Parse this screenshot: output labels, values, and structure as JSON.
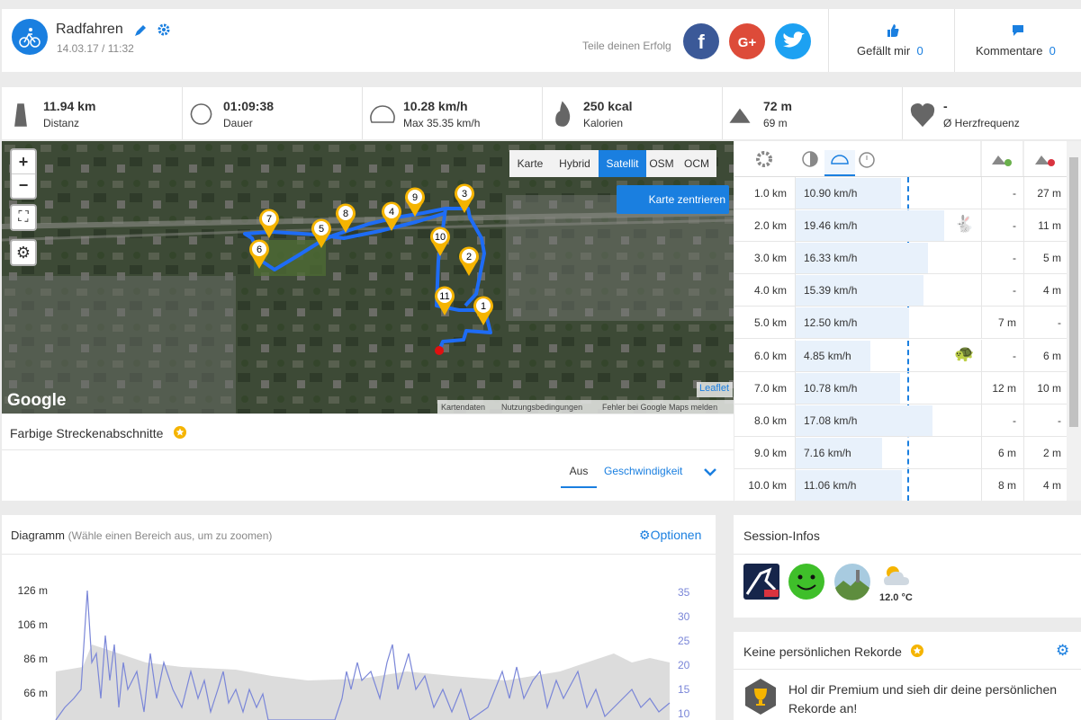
{
  "header": {
    "title": "Radfahren",
    "date": "14.03.17 / 11:32",
    "share": "Teile deinen Erfolg",
    "like_label": "Gefällt mir",
    "like_count": "0",
    "comment_label": "Kommentare",
    "comment_count": "0"
  },
  "stats": [
    {
      "value": "11.94 km",
      "label": "Distanz"
    },
    {
      "value": "01:09:38",
      "label": "Dauer"
    },
    {
      "value": "10.28 km/h",
      "label": "Max 35.35 km/h"
    },
    {
      "value": "250 kcal",
      "label": "Kalorien"
    },
    {
      "value": "72 m",
      "label": "69 m"
    },
    {
      "value": "-",
      "label": "Ø Herzfrequenz"
    }
  ],
  "map": {
    "types": [
      "Karte",
      "Hybrid",
      "Satellit",
      "OSM",
      "OCM"
    ],
    "active_type": "Satellit",
    "center_button": "Karte zentrieren",
    "zoom_in": "+",
    "zoom_out": "−",
    "markers": [
      "1",
      "2",
      "3",
      "4",
      "5",
      "6",
      "7",
      "8",
      "9",
      "10",
      "11"
    ],
    "brand": "Google",
    "attribution": "Leaflet",
    "footer": [
      "Kartendaten",
      "Nutzungsbedingungen",
      "Fehler bei Google Maps melden"
    ]
  },
  "segments": {
    "title": "Farbige Streckenabschnitte",
    "options": [
      "Aus",
      "Geschwindigkeit"
    ]
  },
  "splits": {
    "rows": [
      [
        "1.0 km",
        "10.90 km/h",
        "-",
        "27 m"
      ],
      [
        "2.0 km",
        "19.46 km/h",
        "-",
        "11 m"
      ],
      [
        "3.0 km",
        "16.33 km/h",
        "-",
        "5 m"
      ],
      [
        "4.0 km",
        "15.39 km/h",
        "-",
        "4 m"
      ],
      [
        "5.0 km",
        "12.50 km/h",
        "7 m",
        "-"
      ],
      [
        "6.0 km",
        "4.85 km/h",
        "-",
        "6 m"
      ],
      [
        "7.0 km",
        "10.78 km/h",
        "12 m",
        "10 m"
      ],
      [
        "8.0 km",
        "17.08 km/h",
        "-",
        "-"
      ],
      [
        "9.0 km",
        "7.16 km/h",
        "6 m",
        "2 m"
      ],
      [
        "10.0 km",
        "11.06 km/h",
        "8 m",
        "4 m"
      ]
    ]
  },
  "diagram": {
    "title": "Diagramm",
    "hint": "(Wähle einen Bereich aus, um zu zoomen)",
    "options": "Optionen",
    "left_ticks": [
      "126 m",
      "106 m",
      "86 m",
      "66 m"
    ],
    "right_ticks": [
      "35",
      "30",
      "25",
      "20",
      "15",
      "10"
    ]
  },
  "session": {
    "title": "Session-Infos",
    "temperature": "12.0 °C"
  },
  "records": {
    "title": "Keine persönlichen Rekorde",
    "text": "Hol dir Premium und sieh dir deine persönlichen Rekorde an!"
  }
}
